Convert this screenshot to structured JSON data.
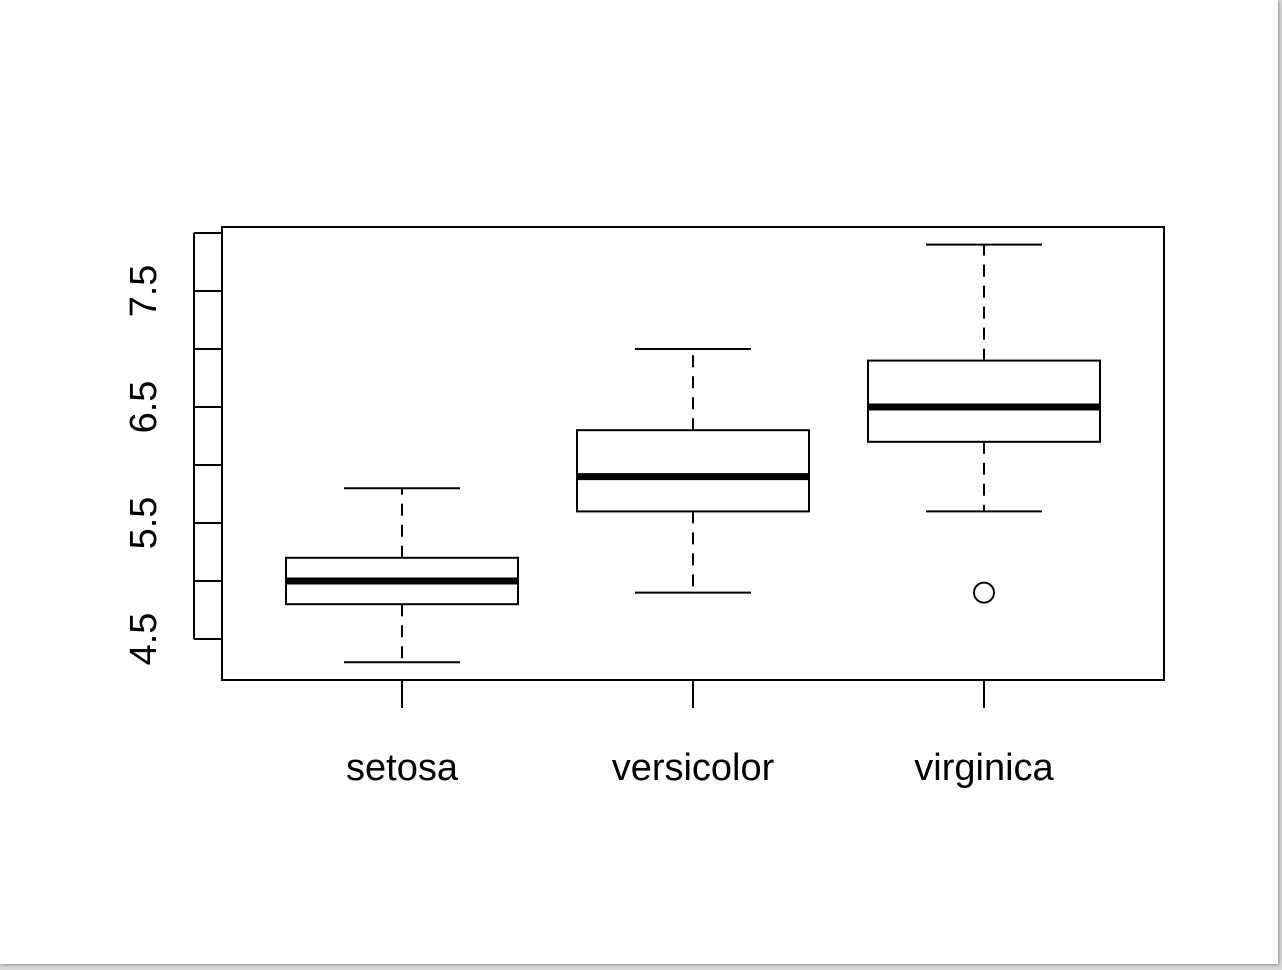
{
  "chart_data": {
    "type": "box",
    "title": "",
    "xlabel": "",
    "ylabel": "",
    "categories": [
      "setosa",
      "versicolor",
      "virginica"
    ],
    "yticks": [
      4.5,
      5.0,
      5.5,
      6.0,
      6.5,
      7.0,
      7.5,
      8.0
    ],
    "ytick_labels": [
      "4.5",
      "",
      "5.5",
      "",
      "6.5",
      "",
      "7.5",
      ""
    ],
    "ylim": [
      4.15,
      8.05
    ],
    "grid": false,
    "legend": "none",
    "boxes": [
      {
        "category": "setosa",
        "whisker_low": 4.3,
        "q1": 4.8,
        "median": 5.0,
        "q3": 5.2,
        "whisker_high": 5.8,
        "outliers": []
      },
      {
        "category": "versicolor",
        "whisker_low": 4.9,
        "q1": 5.6,
        "median": 5.9,
        "q3": 6.3,
        "whisker_high": 7.0,
        "outliers": []
      },
      {
        "category": "virginica",
        "whisker_low": 5.6,
        "q1": 6.2,
        "median": 6.5,
        "q3": 6.9,
        "whisker_high": 7.9,
        "outliers": [
          4.9
        ]
      }
    ],
    "colors": {
      "box_stroke": "#000000",
      "box_fill": "#ffffff",
      "background": "#ffffff"
    }
  }
}
